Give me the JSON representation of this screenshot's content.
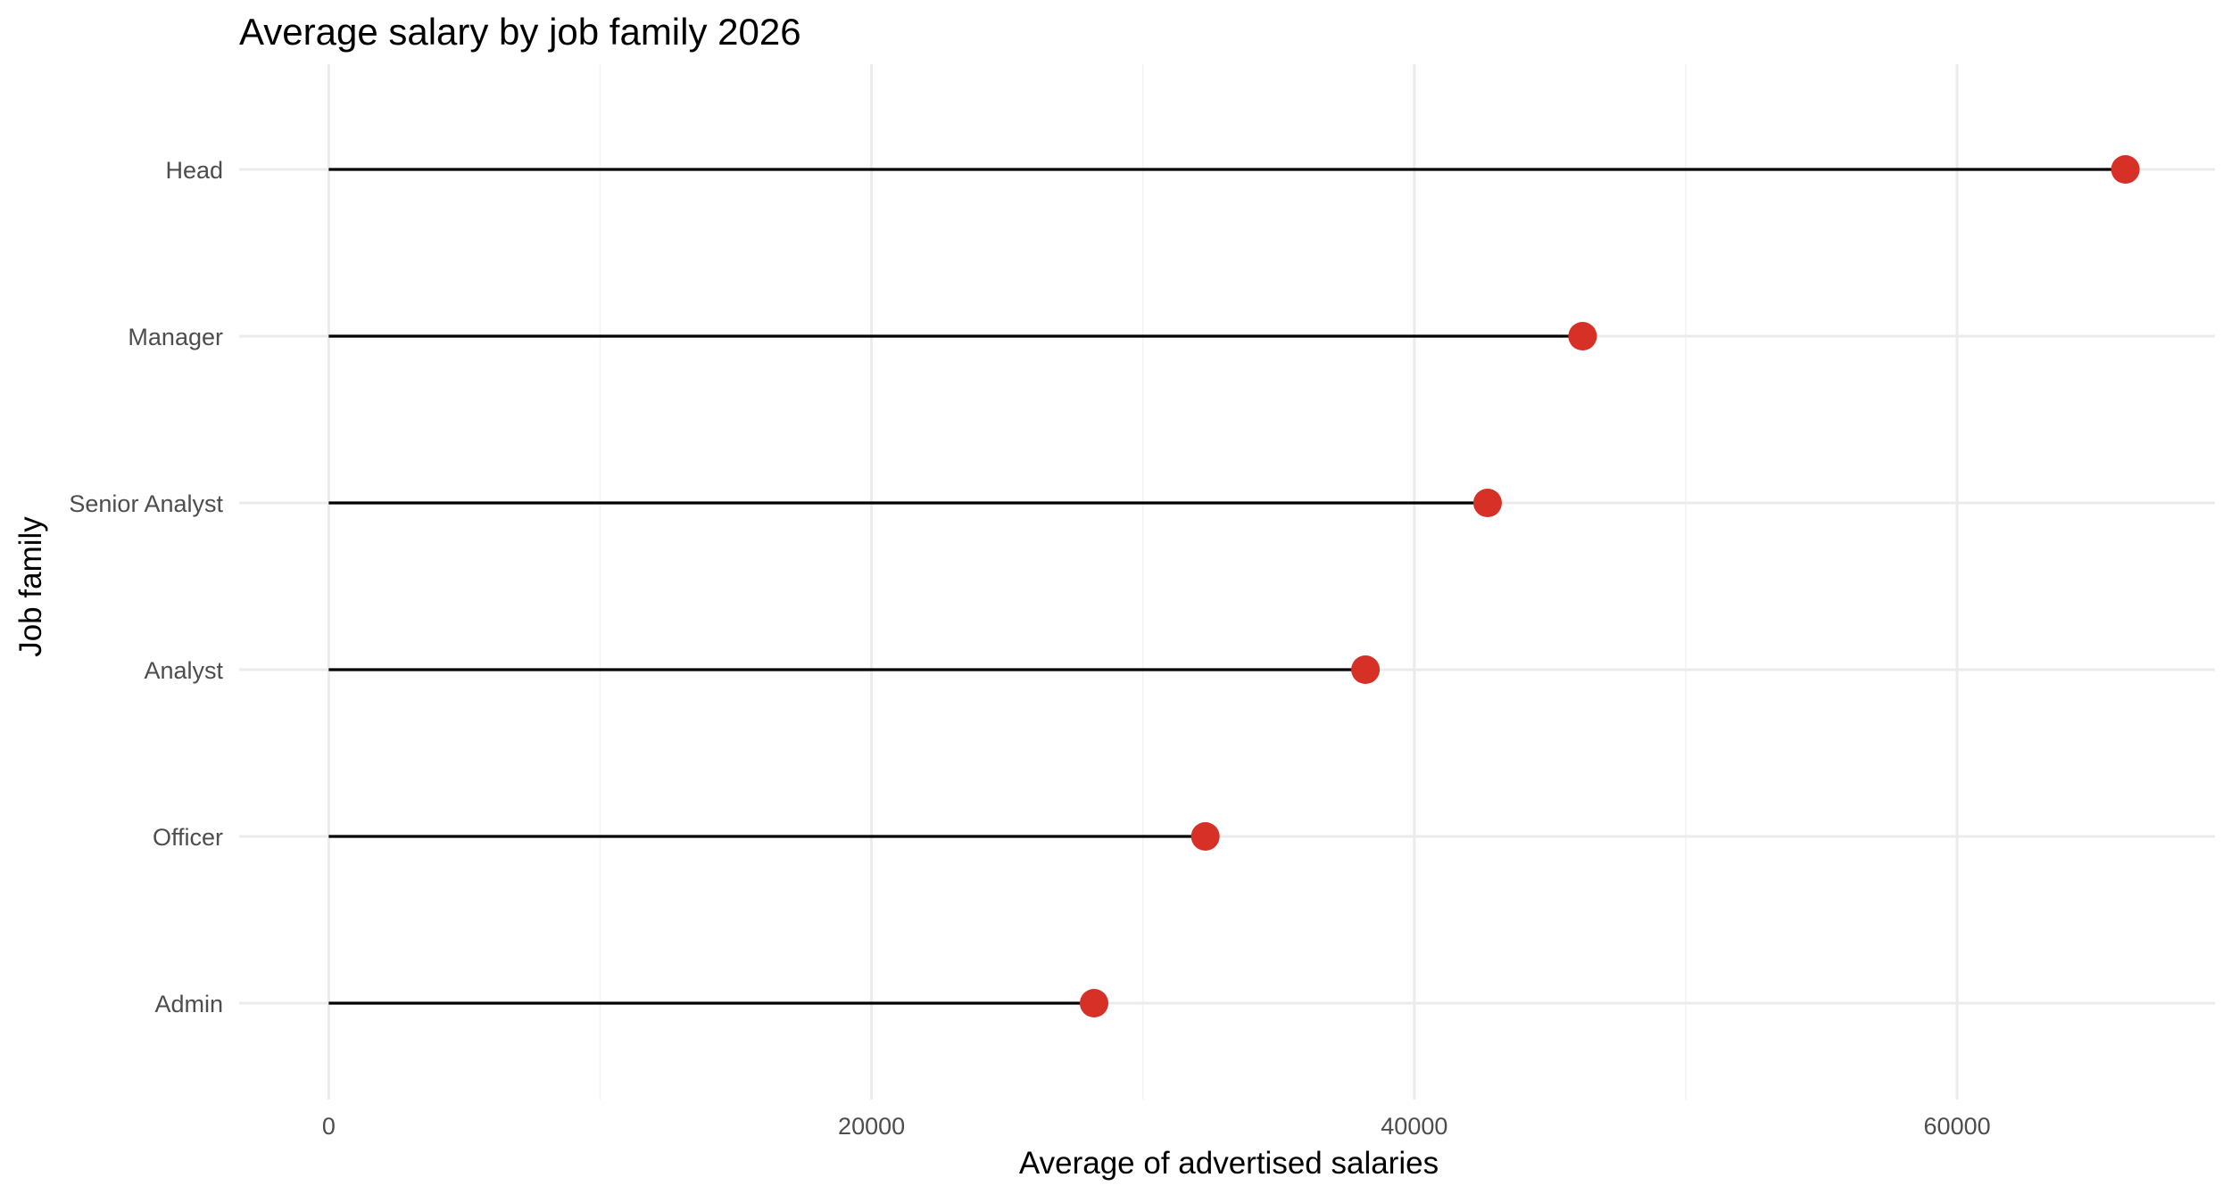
{
  "chart_data": {
    "type": "lollipop",
    "title": "Average salary by job family 2026",
    "xlabel": "Average of advertised salaries",
    "ylabel": "Job family",
    "categories": [
      "Head",
      "Manager",
      "Senior Analyst",
      "Analyst",
      "Officer",
      "Admin"
    ],
    "values": [
      66200,
      46200,
      42700,
      38200,
      32300,
      28200
    ],
    "xlim": [
      -3300,
      69500
    ],
    "xticks": [
      0,
      20000,
      40000,
      60000
    ],
    "xtick_labels": [
      "0",
      "20000",
      "40000",
      "60000"
    ],
    "grid": true,
    "point_color": "#d73027",
    "stem_color": "#000000"
  }
}
